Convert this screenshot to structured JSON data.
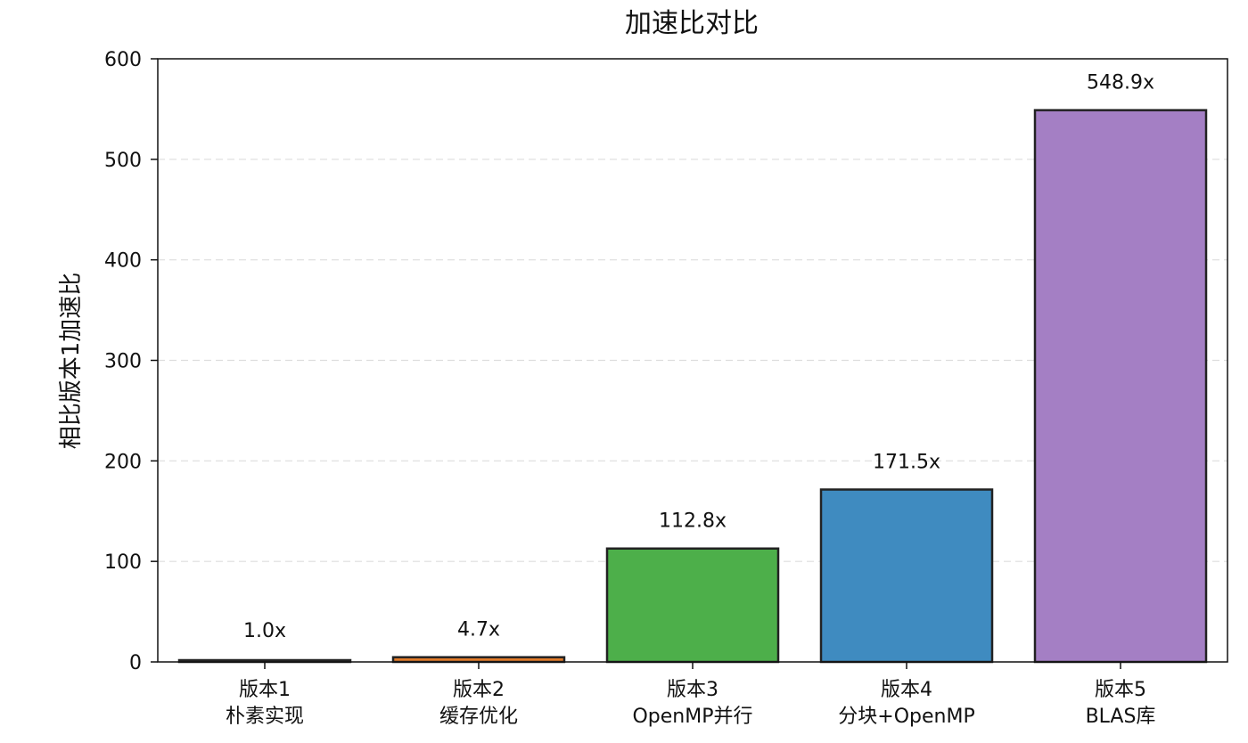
{
  "chart_data": {
    "type": "bar",
    "title": "加速比对比",
    "ylabel": "相比版本1加速比",
    "xlabel": "",
    "ylim": [
      0,
      600
    ],
    "yticks": [
      0,
      100,
      200,
      300,
      400,
      500,
      600
    ],
    "grid": "y-dashed",
    "categories": [
      {
        "line1": "版本1",
        "line2": "朴素实现"
      },
      {
        "line1": "版本2",
        "line2": "缓存优化"
      },
      {
        "line1": "版本3",
        "line2": "OpenMP并行"
      },
      {
        "line1": "版本4",
        "line2": "分块+OpenMP"
      },
      {
        "line1": "版本5",
        "line2": "BLAS库"
      }
    ],
    "values": [
      1.0,
      4.7,
      112.8,
      171.5,
      548.9
    ],
    "data_labels": [
      "1.0x",
      "4.7x",
      "112.8x",
      "171.5x",
      "548.9x"
    ],
    "colors": [
      "#3a3a3a",
      "#e07b2a",
      "#4daf4a",
      "#3f8bc0",
      "#a47fc4"
    ],
    "edge_color": "#222222"
  }
}
